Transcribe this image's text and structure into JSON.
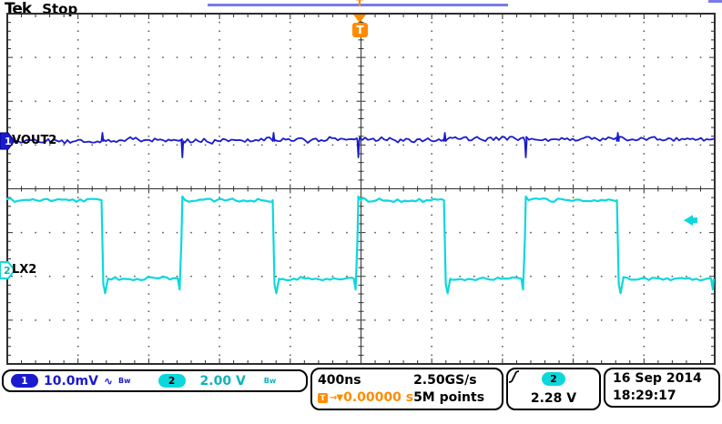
{
  "header": {
    "logo": "Tek",
    "acq_status": "Stop"
  },
  "record_bar": {
    "trigger_symbol": "T"
  },
  "trigger_flag": {
    "symbol": "T"
  },
  "channels": [
    {
      "num": "1",
      "label": "VOUT2"
    },
    {
      "num": "2",
      "label": "LX2"
    }
  ],
  "readouts": {
    "ch1": {
      "num": "1",
      "scale": "10.0mV",
      "coupling_symbol": "∿",
      "bw_label": "Bw"
    },
    "ch2": {
      "num": "2",
      "scale": "2.00 V",
      "bw_label": "Bw"
    },
    "horizontal": {
      "time_per_div": "400ns",
      "sample_rate": "2.50GS/s",
      "trig_badge": "T",
      "trig_arrows": "→▼",
      "trig_position": "0.00000 s",
      "record_length": "5M points"
    },
    "trigger": {
      "source_num": "2",
      "slope": "rising",
      "level": "2.28 V"
    },
    "datetime": {
      "date": "16 Sep 2014",
      "time": "18:29:17"
    }
  },
  "colors": {
    "ch1": "#1a1ace",
    "ch2": "#0cd8dc",
    "orange": "#ff8c00",
    "record_bar": "#7b7be8",
    "grid": "#2e2e2e"
  },
  "chart_data": {
    "type": "line",
    "title": "Oscilloscope capture: VOUT2 output ripple (CH1) and LX2 switch node (CH2)",
    "x": {
      "units": "ns",
      "per_div": 400,
      "divisions": 10,
      "range": [
        -2000,
        2000
      ],
      "trigger_ns": 0
    },
    "y": {
      "divisions": 8
    },
    "legend": [
      "VOUT2",
      "LX2"
    ],
    "series": [
      {
        "name": "VOUT2",
        "channel": 1,
        "volts_per_div_V": 0.01,
        "coupling": "AC",
        "bandwidth_limit": true,
        "position_divs_above_center": 1.09,
        "waveform": "flat ripple/noise band",
        "noise_vpp_mV": 1.6,
        "switching_spikes": "small spikes aligned with LX2 edges"
      },
      {
        "name": "LX2",
        "channel": 2,
        "volts_per_div_V": 2.0,
        "bandwidth_limit": true,
        "zero_divs_below_center": 1.86,
        "waveform": "square",
        "high_V": 3.2,
        "low_V": -0.38,
        "undershoot_spike_V": -1.05,
        "initial_state": "high",
        "final_state": "low",
        "falling_edges_ns": [
          -1462,
          -494,
          474,
          1452
        ],
        "rising_edges_ns": [
          -1010,
          -15,
          932
        ],
        "period_ns_approx": 968
      }
    ],
    "trigger": {
      "source": "CH2",
      "level_V": 2.28,
      "slope": "rising",
      "position_ns": 0
    }
  }
}
